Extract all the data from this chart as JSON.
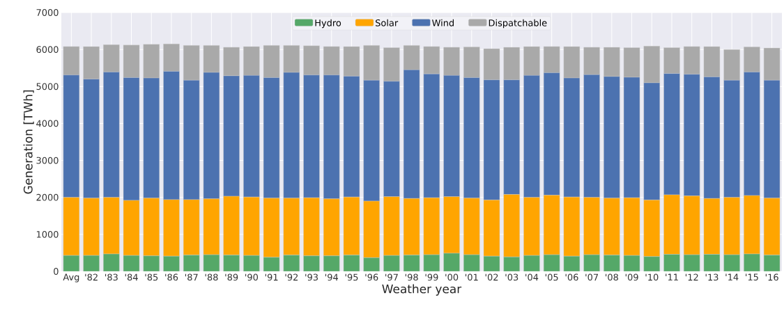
{
  "chart_data": {
    "type": "bar",
    "stacked": true,
    "xlabel": "Weather year",
    "ylabel": "Generation [TWh]",
    "categories": [
      "Avg",
      "'82",
      "'83",
      "'84",
      "'85",
      "'86",
      "'87",
      "'88",
      "'89",
      "'90",
      "'91",
      "'92",
      "'93",
      "'94",
      "'95",
      "'96",
      "'97",
      "'98",
      "'99",
      "'00",
      "'01",
      "'02",
      "'03",
      "'04",
      "'05",
      "'06",
      "'07",
      "'08",
      "'09",
      "'10",
      "'11",
      "'12",
      "'13",
      "'14",
      "'15",
      "'16"
    ],
    "series": [
      {
        "name": "Hydro",
        "color": "#55a868",
        "values": [
          430,
          430,
          470,
          430,
          420,
          410,
          440,
          450,
          440,
          430,
          380,
          440,
          420,
          420,
          440,
          370,
          430,
          440,
          450,
          490,
          450,
          410,
          390,
          430,
          450,
          410,
          450,
          440,
          430,
          400,
          460,
          450,
          460,
          450,
          470,
          440
        ]
      },
      {
        "name": "Solar",
        "color": "#ffa500",
        "values": [
          1570,
          1550,
          1530,
          1490,
          1560,
          1530,
          1500,
          1510,
          1590,
          1580,
          1600,
          1540,
          1570,
          1540,
          1570,
          1530,
          1590,
          1530,
          1540,
          1530,
          1530,
          1520,
          1690,
          1570,
          1610,
          1600,
          1550,
          1540,
          1560,
          1530,
          1610,
          1590,
          1510,
          1550,
          1580,
          1540
        ]
      },
      {
        "name": "Wind",
        "color": "#4c72b0",
        "values": [
          3310,
          3220,
          3390,
          3320,
          3250,
          3470,
          3230,
          3420,
          3260,
          3290,
          3260,
          3400,
          3320,
          3350,
          3270,
          3270,
          3120,
          3480,
          3350,
          3280,
          3260,
          3250,
          3100,
          3300,
          3310,
          3220,
          3320,
          3290,
          3260,
          3170,
          3280,
          3290,
          3290,
          3170,
          3340,
          3190
        ]
      },
      {
        "name": "Dispatchable",
        "color": "#a9a9a9",
        "values": [
          770,
          880,
          740,
          880,
          910,
          740,
          940,
          730,
          770,
          780,
          870,
          730,
          790,
          770,
          800,
          940,
          910,
          660,
          740,
          760,
          830,
          840,
          880,
          780,
          710,
          850,
          740,
          790,
          800,
          990,
          700,
          750,
          820,
          830,
          680,
          870
        ]
      }
    ],
    "ylim": [
      0,
      7000
    ],
    "yticks": [
      0,
      1000,
      2000,
      3000,
      4000,
      5000,
      6000,
      7000
    ],
    "grid": true,
    "legend": "top"
  }
}
